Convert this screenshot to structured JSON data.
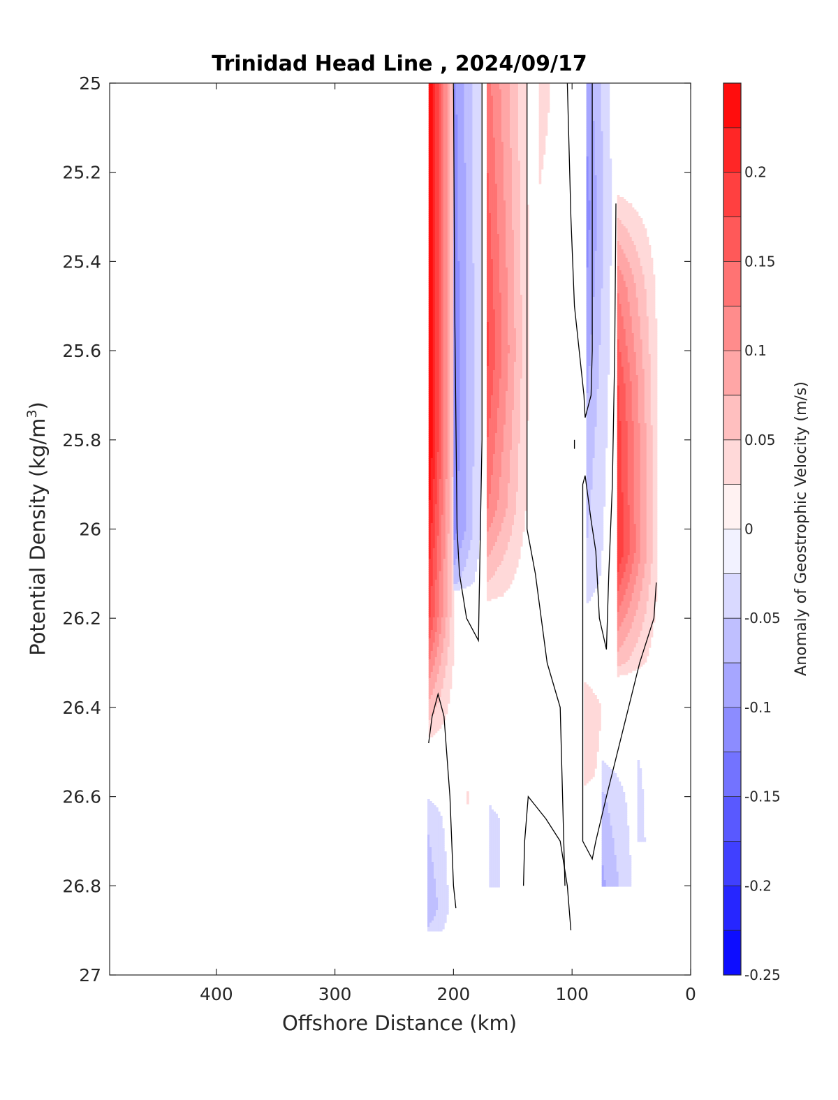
{
  "chart_data": {
    "type": "heatmap",
    "title": "Trinidad Head Line , 2024/09/17",
    "xlabel": "Offshore Distance (km)",
    "ylabel": "Potential Density (kg/m3)",
    "ylabel_main": "Potential Density (kg/m",
    "ylabel_sup": "3",
    "ylabel_close": ")",
    "xlim": [
      490,
      0
    ],
    "x_reversed": true,
    "ylim": [
      25,
      27
    ],
    "y_reversed": true,
    "x_ticks": [
      400,
      300,
      200,
      100,
      0
    ],
    "y_ticks": [
      25,
      25.2,
      25.4,
      25.6,
      25.8,
      26,
      26.2,
      26.4,
      26.6,
      26.8,
      27
    ],
    "y_tick_labels": [
      "25",
      "25.2",
      "25.4",
      "25.6",
      "25.8",
      "26",
      "26.2",
      "26.4",
      "26.6",
      "26.8",
      "27"
    ],
    "colorbar": {
      "label": "Anomaly of Geostrophic Velocity (m/s)",
      "range": [
        -0.25,
        0.25
      ],
      "levels": 20,
      "ticks": [
        0.2,
        0.15,
        0.1,
        0.05,
        0,
        -0.05,
        -0.1,
        -0.15,
        -0.2,
        -0.25
      ],
      "tick_labels": [
        "0.2",
        "0.15",
        "0.1",
        "0.05",
        "0",
        "-0.05",
        "-0.1",
        "-0.15",
        "-0.2",
        "-0.25"
      ],
      "colormap": "blue-white-red",
      "positive_color": "#ff0000",
      "negative_color": "#0000ff"
    },
    "bands": [
      {
        "x_left": 221,
        "x_right": 200,
        "peak": 0.25,
        "profile": [
          [
            25.0,
            1.0
          ],
          [
            25.8,
            1.0
          ],
          [
            26.2,
            0.7
          ],
          [
            26.45,
            0.15
          ],
          [
            26.5,
            0.0
          ]
        ]
      },
      {
        "x_left": 200,
        "x_right": 176,
        "peak": -0.14,
        "profile": [
          [
            25.0,
            0.75
          ],
          [
            25.6,
            0.85
          ],
          [
            26.0,
            0.8
          ],
          [
            26.12,
            0.4
          ],
          [
            26.15,
            0.0
          ]
        ]
      },
      {
        "x_left": 172,
        "x_right": 138,
        "peak": 0.18,
        "profile": [
          [
            25.0,
            0.75
          ],
          [
            25.6,
            1.0
          ],
          [
            25.95,
            0.7
          ],
          [
            26.15,
            0.2
          ],
          [
            26.18,
            0.0
          ]
        ]
      },
      {
        "x_left": 128,
        "x_right": 108,
        "peak": 0.04,
        "profile": [
          [
            25.0,
            1.0
          ],
          [
            25.3,
            0.5
          ],
          [
            25.45,
            0.0
          ]
        ]
      },
      {
        "x_left": 88,
        "x_right": 66,
        "peak": -0.11,
        "profile": [
          [
            25.0,
            0.8
          ],
          [
            25.3,
            1.0
          ],
          [
            25.8,
            0.6
          ],
          [
            26.1,
            0.4
          ],
          [
            26.25,
            0.0
          ]
        ]
      },
      {
        "x_left": 62,
        "x_right": 29,
        "peak": 0.2,
        "profile": [
          [
            25.2,
            0.0
          ],
          [
            25.45,
            0.6
          ],
          [
            25.7,
            0.9
          ],
          [
            26.05,
            1.0
          ],
          [
            26.3,
            0.3
          ],
          [
            26.35,
            0.0
          ]
        ]
      },
      {
        "x_left": 90,
        "x_right": 58,
        "peak": 0.04,
        "profile": [
          [
            26.25,
            0.0
          ],
          [
            26.4,
            1.0
          ],
          [
            26.55,
            0.8
          ],
          [
            26.65,
            0.0
          ]
        ]
      },
      {
        "x_left": 222,
        "x_right": 200,
        "peak": -0.09,
        "profile": [
          [
            26.55,
            0.0
          ],
          [
            26.65,
            0.5
          ],
          [
            26.85,
            0.8
          ],
          [
            26.9,
            0.5
          ]
        ]
      },
      {
        "x_left": 189,
        "x_right": 180,
        "peak": 0.04,
        "profile": [
          [
            26.5,
            0.0
          ],
          [
            26.6,
            0.7
          ],
          [
            26.75,
            0.0
          ]
        ]
      },
      {
        "x_left": 170,
        "x_right": 148,
        "peak": -0.05,
        "profile": [
          [
            26.55,
            0.0
          ],
          [
            26.65,
            0.7
          ],
          [
            26.8,
            0.7
          ]
        ]
      },
      {
        "x_left": 75,
        "x_right": 45,
        "peak": -0.09,
        "profile": [
          [
            26.45,
            0.0
          ],
          [
            26.6,
            0.6
          ],
          [
            26.8,
            0.9
          ]
        ]
      },
      {
        "x_left": 45,
        "x_right": 30,
        "peak": -0.06,
        "profile": [
          [
            26.35,
            0.0
          ],
          [
            26.55,
            0.5
          ],
          [
            26.7,
            0.6
          ]
        ]
      }
    ],
    "zero_contours": [
      [
        [
          200,
          25.0
        ],
        [
          199,
          25.5
        ],
        [
          197,
          26.0
        ],
        [
          195,
          26.1
        ],
        [
          189,
          26.2
        ],
        [
          179,
          26.25
        ],
        [
          176,
          25.8
        ],
        [
          176,
          25.0
        ]
      ],
      [
        [
          138,
          25.0
        ],
        [
          138,
          25.6
        ],
        [
          138,
          26.0
        ],
        [
          131,
          26.1
        ],
        [
          121,
          26.3
        ],
        [
          110,
          26.4
        ],
        [
          108,
          26.6
        ],
        [
          106,
          26.8
        ]
      ],
      [
        [
          104,
          25.0
        ],
        [
          101,
          25.3
        ],
        [
          98,
          25.5
        ],
        [
          94,
          25.6
        ],
        [
          90,
          25.7
        ],
        [
          89,
          25.75
        ],
        [
          84,
          25.7
        ],
        [
          83,
          25.6
        ],
        [
          83,
          25.0
        ]
      ],
      [
        [
          98,
          25.8
        ],
        [
          98,
          25.82
        ]
      ],
      [
        [
          63,
          25.27
        ],
        [
          64,
          25.6
        ],
        [
          66,
          25.9
        ],
        [
          69,
          26.1
        ],
        [
          71,
          26.27
        ],
        [
          77,
          26.2
        ],
        [
          80,
          26.05
        ],
        [
          84,
          25.98
        ],
        [
          89,
          25.88
        ],
        [
          91,
          25.9
        ],
        [
          91,
          26.3
        ],
        [
          91,
          26.7
        ],
        [
          83,
          26.74
        ],
        [
          80,
          26.7
        ],
        [
          71,
          26.6
        ],
        [
          57,
          26.45
        ],
        [
          43,
          26.3
        ],
        [
          31,
          26.2
        ],
        [
          29,
          26.12
        ]
      ],
      [
        [
          221,
          26.48
        ],
        [
          218,
          26.42
        ],
        [
          213,
          26.37
        ],
        [
          208,
          26.42
        ],
        [
          203,
          26.6
        ],
        [
          200,
          26.8
        ],
        [
          198,
          26.85
        ]
      ],
      [
        [
          141,
          26.8
        ],
        [
          140,
          26.7
        ],
        [
          137,
          26.6
        ],
        [
          122,
          26.65
        ],
        [
          110,
          26.7
        ],
        [
          104,
          26.8
        ],
        [
          101,
          26.9
        ]
      ]
    ]
  }
}
